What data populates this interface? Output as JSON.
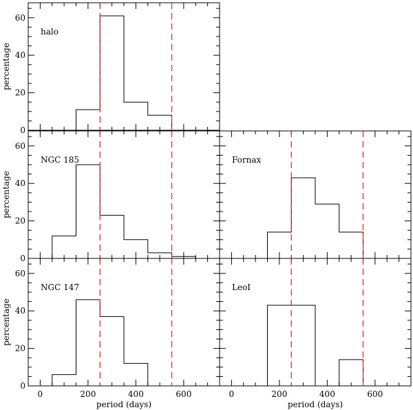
{
  "chart_data": {
    "type": "bar",
    "xlabel": "period (days)",
    "ylabel": "percentage",
    "xlim": [
      -50,
      750
    ],
    "ylim": [
      0,
      68
    ],
    "x_ticks": [
      0,
      200,
      400,
      600
    ],
    "y_ticks": [
      0,
      20,
      40,
      60
    ],
    "bin_width": 100,
    "reference_lines": [
      250,
      550
    ],
    "panels": [
      {
        "id": "halo",
        "label": "halo",
        "row": 0,
        "col": 0,
        "show_yticklabels": true,
        "show_xticklabels": false,
        "bins": [
          {
            "x": 200,
            "y": 11
          },
          {
            "x": 300,
            "y": 61
          },
          {
            "x": 400,
            "y": 15
          },
          {
            "x": 500,
            "y": 8
          }
        ]
      },
      {
        "id": "ngc185",
        "label": "NGC 185",
        "row": 1,
        "col": 0,
        "show_yticklabels": true,
        "show_xticklabels": false,
        "bins": [
          {
            "x": 100,
            "y": 12
          },
          {
            "x": 200,
            "y": 50
          },
          {
            "x": 300,
            "y": 23
          },
          {
            "x": 400,
            "y": 10
          },
          {
            "x": 500,
            "y": 3
          },
          {
            "x": 600,
            "y": 1
          }
        ]
      },
      {
        "id": "fornax",
        "label": "Fornax",
        "row": 1,
        "col": 1,
        "show_yticklabels": false,
        "show_xticklabels": false,
        "bins": [
          {
            "x": 200,
            "y": 14
          },
          {
            "x": 300,
            "y": 43
          },
          {
            "x": 400,
            "y": 29
          },
          {
            "x": 500,
            "y": 14
          }
        ]
      },
      {
        "id": "ngc147",
        "label": "NGC 147",
        "row": 2,
        "col": 0,
        "show_yticklabels": true,
        "show_xticklabels": true,
        "bins": [
          {
            "x": 100,
            "y": 6
          },
          {
            "x": 200,
            "y": 46
          },
          {
            "x": 300,
            "y": 37
          },
          {
            "x": 400,
            "y": 12
          }
        ]
      },
      {
        "id": "leoi",
        "label": "LeoI",
        "row": 2,
        "col": 1,
        "show_yticklabels": false,
        "show_xticklabels": true,
        "bins": [
          {
            "x": 200,
            "y": 43
          },
          {
            "x": 300,
            "y": 43
          },
          {
            "x": 500,
            "y": 14
          }
        ]
      }
    ]
  }
}
